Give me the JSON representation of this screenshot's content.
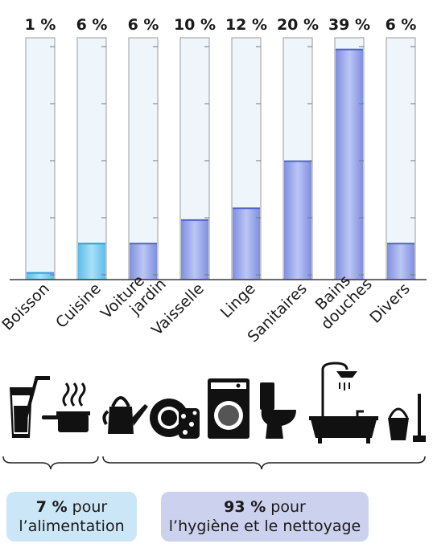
{
  "chart_data": {
    "type": "bar",
    "categories": [
      "Boisson",
      "Cuisine",
      "Voiture\njardin",
      "Vaisselle",
      "Linge",
      "Sanitaires",
      "Bains\ndouches",
      "Divers"
    ],
    "values": [
      1,
      6,
      6,
      10,
      12,
      20,
      39,
      6
    ],
    "value_labels": [
      "1 %",
      "6 %",
      "6 %",
      "10 %",
      "12 %",
      "20 %",
      "39 %",
      "6 %"
    ],
    "ylim": [
      0,
      41
    ],
    "bar_style": "graduated-cylinder"
  },
  "colors": {
    "light_blue": "#7fd0f2",
    "violet_blue": "#9aa8ec",
    "tube_bg": "#eef6fc",
    "outline": "#3a3a3a"
  },
  "icons": [
    "glass-with-straw-icon",
    "cooking-pot-icon",
    "watering-can-icon",
    "dishes-sponge-icon",
    "washing-machine-icon",
    "toilet-icon",
    "bathtub-shower-icon",
    "bucket-mop-icon"
  ],
  "summary": {
    "food": {
      "value": "7 %",
      "text": " pour",
      "line2": "l’alimentation"
    },
    "hygiene": {
      "value": "93 %",
      "text": " pour",
      "line2": "l’hygiène et le nettoyage"
    }
  }
}
